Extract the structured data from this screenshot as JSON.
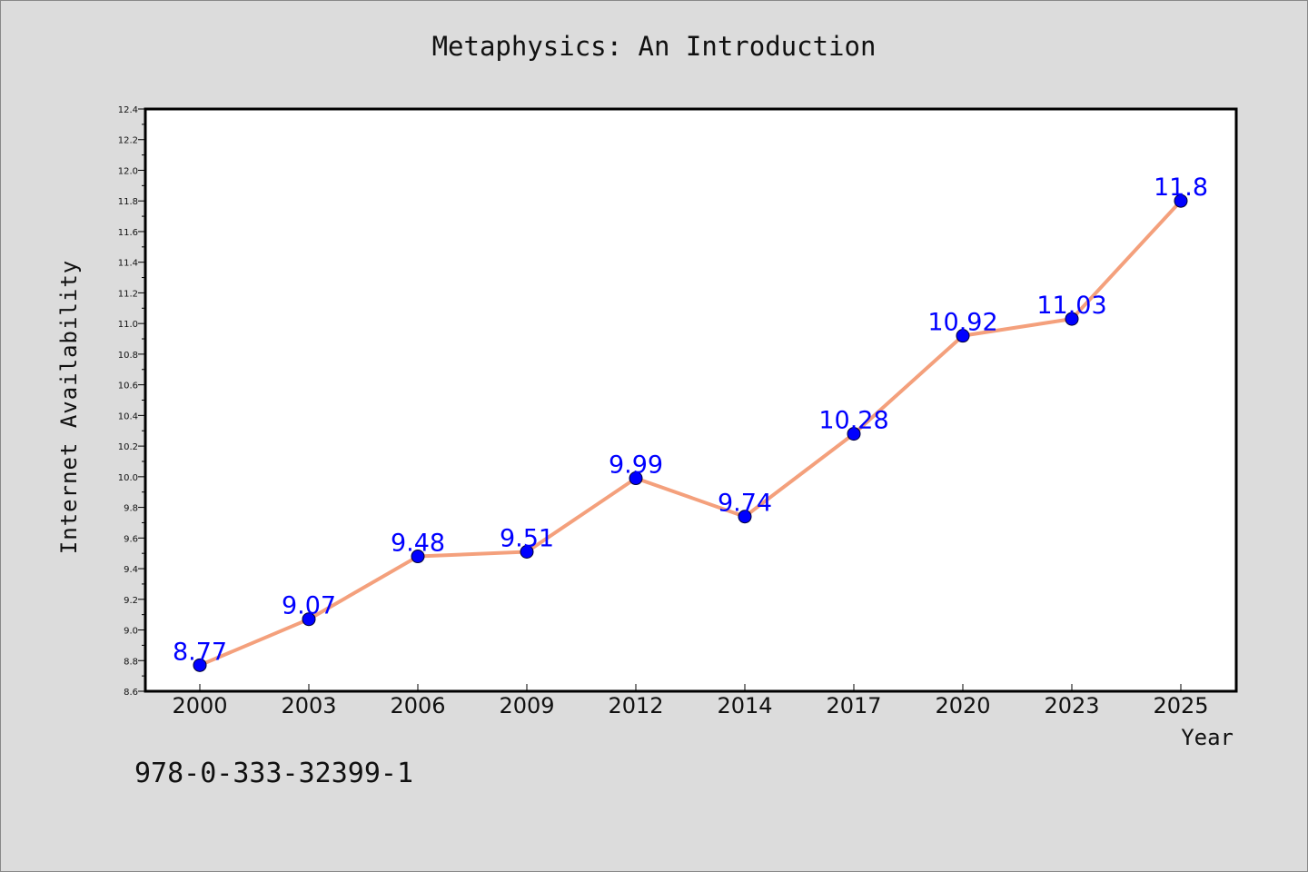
{
  "header": {
    "title": "Metaphysics: An Introduction"
  },
  "footer": {
    "isbn": "978-0-333-32399-1"
  },
  "chart_data": {
    "type": "line",
    "title": "Metaphysics: An Introduction",
    "xlabel": "Year",
    "ylabel": "Internet Availability",
    "categories": [
      "2000",
      "2003",
      "2006",
      "2009",
      "2012",
      "2014",
      "2017",
      "2020",
      "2023",
      "2025"
    ],
    "series": [
      {
        "values": [
          8.77,
          9.07,
          9.48,
          9.51,
          9.99,
          9.74,
          10.28,
          10.92,
          11.03,
          11.8
        ],
        "labels": [
          "8.77",
          "9.07",
          "9.48",
          "9.51",
          "9.99",
          "9.74",
          "10.28",
          "10.92",
          "11.03",
          "11.8"
        ],
        "line_color": "#f4a07c",
        "marker_color": "#0000ff"
      }
    ],
    "ylim": [
      8.6,
      12.4
    ],
    "yticks": [
      "8.6",
      "8.8",
      "9.0",
      "9.2",
      "9.4",
      "9.6",
      "9.8",
      "10.0",
      "10.2",
      "10.4",
      "10.6",
      "10.8",
      "11.0",
      "11.2",
      "11.4",
      "11.6",
      "11.8",
      "12.0",
      "12.2",
      "12.4"
    ],
    "grid": false,
    "legend": "none",
    "colors": {
      "background": "#dcdcdc",
      "plot_background": "#ffffff",
      "label": "#0000ff"
    }
  }
}
